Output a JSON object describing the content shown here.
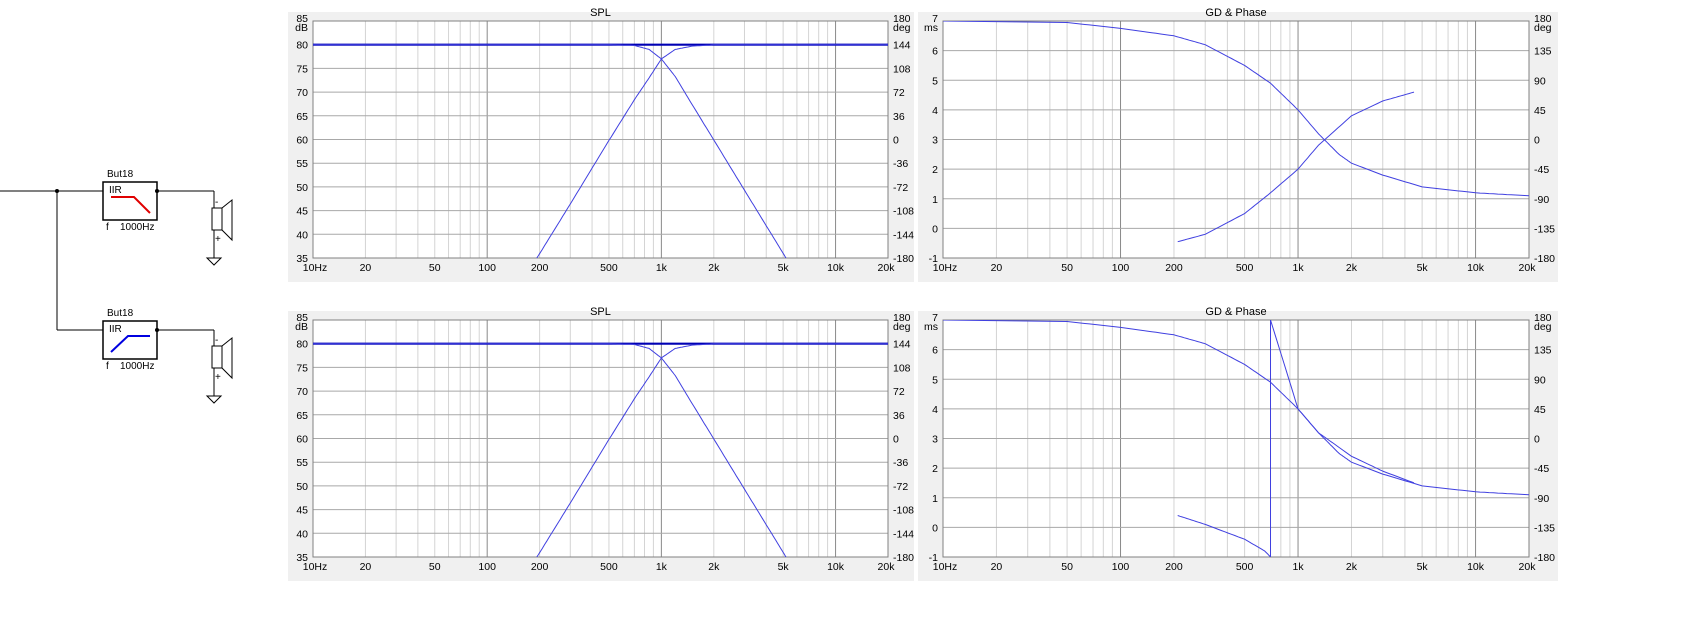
{
  "schematic": {
    "filters": [
      {
        "name": "But18",
        "kind": "IIR",
        "f_label": "f",
        "freq_label": "1000Hz",
        "response": "lowpass",
        "color": "#e00000"
      },
      {
        "name": "But18",
        "kind": "IIR",
        "f_label": "f",
        "freq_label": "1000Hz",
        "response": "highpass",
        "color": "#0000e0"
      }
    ],
    "speaker_minus": "-",
    "speaker_plus": "+"
  },
  "chart_data": [
    {
      "type": "line",
      "title": "SPL",
      "xscale": "log",
      "xlim": [
        10,
        20000
      ],
      "xticks": [
        10,
        20,
        50,
        100,
        200,
        500,
        1000,
        2000,
        5000,
        10000,
        20000
      ],
      "xticklabels": [
        "10Hz",
        "20",
        "50",
        "100",
        "200",
        "500",
        "1k",
        "2k",
        "5k",
        "10k",
        "20k"
      ],
      "ylim": [
        35,
        85
      ],
      "yticks": [
        35,
        40,
        45,
        50,
        55,
        60,
        65,
        70,
        75,
        80,
        85
      ],
      "yunit": "dB",
      "y2lim": [
        -180,
        180
      ],
      "y2ticks": [
        -180,
        -144,
        -108,
        -72,
        -36,
        0,
        36,
        72,
        108,
        144,
        180
      ],
      "y2unit": "deg",
      "grid": true,
      "series": [
        {
          "color": "#0000b4",
          "width": 2.2,
          "x": [
            10,
            20000
          ],
          "y": [
            80,
            80
          ]
        },
        {
          "color": "#4040e0",
          "width": 1,
          "x": [
            10,
            100,
            300,
            500,
            700,
            850,
            1000,
            1200,
            1500,
            2000,
            3000,
            4000,
            5000,
            6000
          ],
          "y": [
            80,
            80,
            80,
            79.99,
            79.84,
            79.0,
            77.0,
            73.3,
            67.4,
            59.9,
            49.3,
            41.8,
            36.0,
            31.2
          ]
        },
        {
          "color": "#4040e0",
          "width": 1,
          "x": [
            165,
            200,
            300,
            500,
            700,
            850,
            1000,
            1200,
            1500,
            2000,
            3000,
            10000,
            20000
          ],
          "y": [
            31.2,
            35.9,
            46.4,
            59.8,
            68.4,
            73.0,
            77.0,
            79.0,
            79.7,
            79.97,
            80,
            80,
            80
          ]
        }
      ]
    },
    {
      "type": "line",
      "title": "GD & Phase",
      "xscale": "log",
      "xlim": [
        10,
        20000
      ],
      "xticks": [
        10,
        20,
        50,
        100,
        200,
        500,
        1000,
        2000,
        5000,
        10000,
        20000
      ],
      "xticklabels": [
        "10Hz",
        "20",
        "50",
        "100",
        "200",
        "500",
        "1k",
        "2k",
        "5k",
        "10k",
        "20k"
      ],
      "ylim": [
        -1,
        7
      ],
      "yticks": [
        -1,
        0,
        1,
        2,
        3,
        4,
        5,
        6,
        7
      ],
      "yunit": "ms",
      "y2lim": [
        -180,
        180
      ],
      "y2ticks": [
        -180,
        -135,
        -90,
        -45,
        0,
        45,
        90,
        135,
        180
      ],
      "y2unit": "deg",
      "grid": true,
      "series": [
        {
          "color": "#4040e0",
          "width": 1,
          "x": [
            10,
            50,
            100,
            200,
            300,
            500,
            700,
            1000,
            1300,
            1700,
            2000,
            3000,
            5000,
            10000,
            20000
          ],
          "y": [
            7,
            6.95,
            6.75,
            6.5,
            6.2,
            5.5,
            4.9,
            4.0,
            3.2,
            2.5,
            2.2,
            1.8,
            1.4,
            1.2,
            1.1
          ]
        },
        {
          "color": "#4040e0",
          "width": 1,
          "x": [
            210,
            300,
            500,
            700,
            1000,
            1300,
            2000,
            3000,
            4500
          ],
          "y": [
            -0.45,
            -0.2,
            0.5,
            1.2,
            2.0,
            2.8,
            3.8,
            4.3,
            4.6
          ]
        }
      ]
    },
    {
      "type": "line",
      "title": "SPL",
      "xscale": "log",
      "xlim": [
        10,
        20000
      ],
      "xticks": [
        10,
        20,
        50,
        100,
        200,
        500,
        1000,
        2000,
        5000,
        10000,
        20000
      ],
      "xticklabels": [
        "10Hz",
        "20",
        "50",
        "100",
        "200",
        "500",
        "1k",
        "2k",
        "5k",
        "10k",
        "20k"
      ],
      "ylim": [
        35,
        85
      ],
      "yticks": [
        35,
        40,
        45,
        50,
        55,
        60,
        65,
        70,
        75,
        80,
        85
      ],
      "yunit": "dB",
      "y2lim": [
        -180,
        180
      ],
      "y2ticks": [
        -180,
        -144,
        -108,
        -72,
        -36,
        0,
        36,
        72,
        108,
        144,
        180
      ],
      "y2unit": "deg",
      "grid": true,
      "series": [
        {
          "color": "#0000b4",
          "width": 2.2,
          "x": [
            10,
            20000
          ],
          "y": [
            80,
            80
          ]
        },
        {
          "color": "#4040e0",
          "width": 1,
          "x": [
            10,
            100,
            300,
            500,
            700,
            850,
            1000,
            1200,
            1500,
            2000,
            3000,
            4000,
            5000,
            6000
          ],
          "y": [
            80,
            80,
            80,
            79.99,
            79.84,
            79.0,
            77.0,
            73.3,
            67.4,
            59.9,
            49.3,
            41.8,
            36.0,
            31.2
          ]
        },
        {
          "color": "#4040e0",
          "width": 1,
          "x": [
            165,
            200,
            300,
            500,
            700,
            850,
            1000,
            1200,
            1500,
            2000,
            3000,
            10000,
            20000
          ],
          "y": [
            31.2,
            35.9,
            46.4,
            59.8,
            68.4,
            73.0,
            77.0,
            79.0,
            79.7,
            79.97,
            80,
            80,
            80
          ]
        }
      ]
    },
    {
      "type": "line",
      "title": "GD & Phase",
      "xscale": "log",
      "xlim": [
        10,
        20000
      ],
      "xticks": [
        10,
        20,
        50,
        100,
        200,
        500,
        1000,
        2000,
        5000,
        10000,
        20000
      ],
      "xticklabels": [
        "10Hz",
        "20",
        "50",
        "100",
        "200",
        "500",
        "1k",
        "2k",
        "5k",
        "10k",
        "20k"
      ],
      "ylim": [
        -1,
        7
      ],
      "yticks": [
        -1,
        0,
        1,
        2,
        3,
        4,
        5,
        6,
        7
      ],
      "yunit": "ms",
      "y2lim": [
        -180,
        180
      ],
      "y2ticks": [
        -180,
        -135,
        -90,
        -45,
        0,
        45,
        90,
        135,
        180
      ],
      "y2unit": "deg",
      "grid": true,
      "series": [
        {
          "color": "#4040e0",
          "width": 1,
          "x": [
            10,
            50,
            100,
            200,
            300,
            500,
            700,
            1000,
            1300,
            1700,
            2000,
            3000,
            5000,
            10000,
            20000
          ],
          "y": [
            7,
            6.95,
            6.75,
            6.5,
            6.2,
            5.5,
            4.9,
            4.0,
            3.2,
            2.5,
            2.2,
            1.8,
            1.4,
            1.2,
            1.1
          ]
        },
        {
          "color": "#4040e0",
          "width": 1,
          "x": [
            210,
            300,
            500,
            650,
            700
          ],
          "y": [
            0.4,
            0.1,
            -0.4,
            -0.8,
            -1.0
          ]
        },
        {
          "color": "#4040e0",
          "width": 1,
          "x": [
            700,
            700
          ],
          "y": [
            -1.0,
            7.0
          ]
        },
        {
          "color": "#4040e0",
          "width": 1,
          "x": [
            700,
            1000,
            1300,
            2000,
            3000,
            4500
          ],
          "y": [
            7.0,
            4.0,
            3.2,
            2.4,
            1.9,
            1.5
          ]
        }
      ]
    }
  ]
}
